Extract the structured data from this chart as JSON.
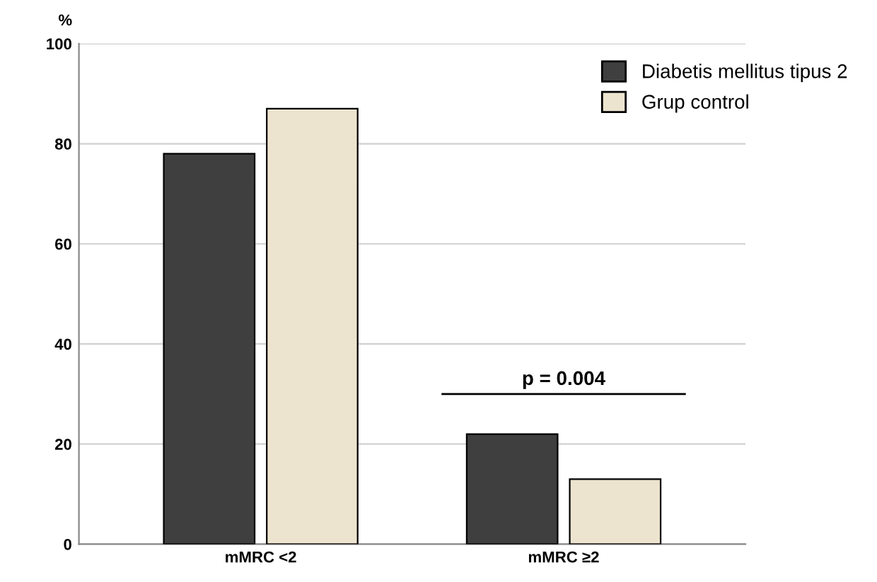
{
  "chart_data": {
    "type": "bar",
    "ylabel": "%",
    "categories": [
      "mMRC <2",
      "mMRC ≥2"
    ],
    "series": [
      {
        "name": "Diabetis mellitus tipus 2",
        "color": "#3f3f3f",
        "values": [
          78,
          22
        ]
      },
      {
        "name": "Grup control",
        "color": "#ede4cf",
        "values": [
          87,
          13
        ]
      }
    ],
    "ylim": [
      0,
      100
    ],
    "yticks": [
      0,
      20,
      40,
      60,
      80,
      100
    ],
    "grid": "y",
    "legend": "top right",
    "annotations": [
      "p = 0.004"
    ]
  }
}
